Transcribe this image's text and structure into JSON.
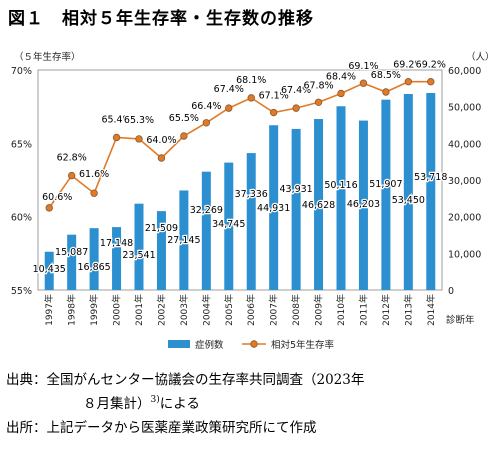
{
  "title": "図１　相対５年生存率・生存数の推移",
  "chart_data": {
    "type": "bar+line",
    "categories": [
      "1997年",
      "1998年",
      "1999年",
      "2000年",
      "2001年",
      "2002年",
      "2003年",
      "2004年",
      "2005年",
      "2006年",
      "2007年",
      "2008年",
      "2009年",
      "2010年",
      "2011年",
      "2012年",
      "2013年",
      "2014年"
    ],
    "series": [
      {
        "name": "症例数",
        "type": "bar",
        "axis": "right",
        "values": [
          10435,
          15087,
          16865,
          17148,
          23541,
          21509,
          27145,
          32269,
          34745,
          37336,
          44931,
          43931,
          46628,
          50116,
          46203,
          51907,
          53450,
          53718
        ],
        "labels": [
          "10,435",
          "15,087",
          "16,865",
          "17,148",
          "23,541",
          "21,509",
          "27,145",
          "32,269",
          "34,745",
          "37,336",
          "44,931",
          "43,931",
          "46,628",
          "50,116",
          "46,203",
          "51,907",
          "53,450",
          "53,718"
        ]
      },
      {
        "name": "相対5年生存率",
        "type": "line",
        "axis": "left",
        "values": [
          60.6,
          62.8,
          61.6,
          65.4,
          65.3,
          64.0,
          65.5,
          66.4,
          67.4,
          68.1,
          67.1,
          67.4,
          67.8,
          68.4,
          69.1,
          68.5,
          69.2,
          69.2
        ],
        "labels": [
          "60.6%",
          "62.8%",
          "61.6%",
          "65.4%",
          "65.3%",
          "64.0%",
          "65.5%",
          "66.4%",
          "67.4%",
          "68.1%",
          "67.1%",
          "67.4%",
          "67.8%",
          "68.4%",
          "69.1%",
          "68.5%",
          "69.2%",
          "69.2%"
        ]
      }
    ],
    "y_left": {
      "label": "（５年生存率）",
      "range": [
        55,
        70
      ],
      "ticks": [
        "55%",
        "60%",
        "65%",
        "70%"
      ]
    },
    "y_right": {
      "label": "（人）",
      "range": [
        0,
        60000
      ],
      "ticks": [
        "0",
        "10,000",
        "20,000",
        "30,000",
        "40,000",
        "50,000",
        "60,000"
      ]
    },
    "xlabel": "診断年",
    "legend_position": "bottom",
    "colors": {
      "bar": "#2b8fd0",
      "line": "#e07a28",
      "marker": "#8a5a2c"
    }
  },
  "notes": {
    "source_line1": "出典：全国がんセンター協議会の生存率共同調査（2023年",
    "source_line2": "８月集計）",
    "source_sup": "3)",
    "source_line2_end": "による",
    "made_by": "出所：上記データから医薬産業政策研究所にて作成"
  }
}
